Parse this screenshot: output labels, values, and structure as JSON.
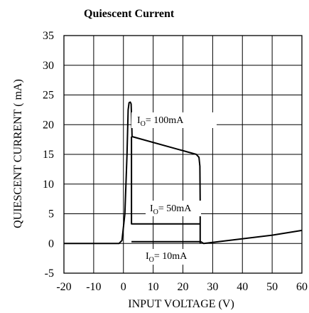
{
  "chart_data": {
    "type": "line",
    "title": "Quiescent Current",
    "xlabel": "INPUT VOLTAGE (V)",
    "ylabel": "QUIESCENT CURRENT ( mA)",
    "xlim": [
      -20,
      60
    ],
    "ylim": [
      -5,
      35
    ],
    "x_ticks": [
      -20,
      -10,
      0,
      10,
      20,
      30,
      40,
      50,
      60
    ],
    "y_ticks": [
      -5,
      0,
      5,
      10,
      15,
      20,
      25,
      30,
      35
    ],
    "grid": true,
    "series": [
      {
        "name": "IO= 100mA",
        "points": [
          [
            -20,
            0
          ],
          [
            -1.5,
            0
          ],
          [
            -0.5,
            0.5
          ],
          [
            0.5,
            5
          ],
          [
            1.2,
            15
          ],
          [
            1.6,
            22.5
          ],
          [
            1.9,
            23.7
          ],
          [
            2.3,
            23.8
          ],
          [
            2.6,
            23.5
          ],
          [
            2.8,
            20
          ],
          [
            2.9,
            18
          ],
          [
            24.5,
            15
          ],
          [
            25.4,
            14.5
          ],
          [
            25.7,
            13
          ],
          [
            25.8,
            7
          ],
          [
            25.8,
            0
          ]
        ]
      },
      {
        "name": "IO= 50mA",
        "points": [
          [
            2.7,
            18
          ],
          [
            2.7,
            3.3
          ],
          [
            26,
            3.3
          ]
        ]
      },
      {
        "name": "IO= 10mA",
        "points": [
          [
            2.7,
            0.3
          ],
          [
            26,
            0.3
          ],
          [
            27,
            0
          ],
          [
            50,
            1.4
          ],
          [
            60,
            2.2
          ]
        ]
      }
    ],
    "annotations": {
      "a100": {
        "base": "I",
        "sub": "O",
        "text": "= 100mA"
      },
      "a50": {
        "base": "I",
        "sub": "O",
        "text": "= 50mA"
      },
      "a10": {
        "base": "I",
        "sub": "O",
        "text": "= 10mA"
      }
    }
  }
}
